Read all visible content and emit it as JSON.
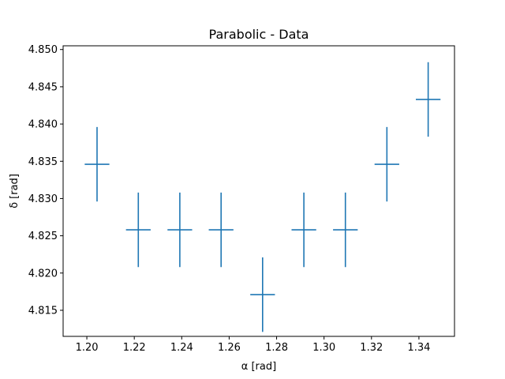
{
  "chart_data": {
    "type": "scatter",
    "title": "Parabolic - Data",
    "xlabel": "α [rad]",
    "ylabel": "δ [rad]",
    "xlim": [
      1.19,
      1.355
    ],
    "ylim": [
      4.8115,
      4.8505
    ],
    "x_ticks": [
      "1.20",
      "1.22",
      "1.24",
      "1.26",
      "1.28",
      "1.30",
      "1.32",
      "1.34"
    ],
    "y_ticks": [
      "4.815",
      "4.820",
      "4.825",
      "4.830",
      "4.835",
      "4.840",
      "4.845",
      "4.850"
    ],
    "grid": false,
    "legend": "none",
    "color": "#1f77b4",
    "series": [
      {
        "x": [
          1.2043,
          1.2217,
          1.2392,
          1.2566,
          1.2741,
          1.2915,
          1.309,
          1.3265,
          1.3439
        ],
        "y": [
          4.8346,
          4.8258,
          4.8258,
          4.8258,
          4.8171,
          4.8258,
          4.8258,
          4.8346,
          4.8433
        ],
        "x_err": 0.0052,
        "y_err": 0.005
      }
    ]
  }
}
